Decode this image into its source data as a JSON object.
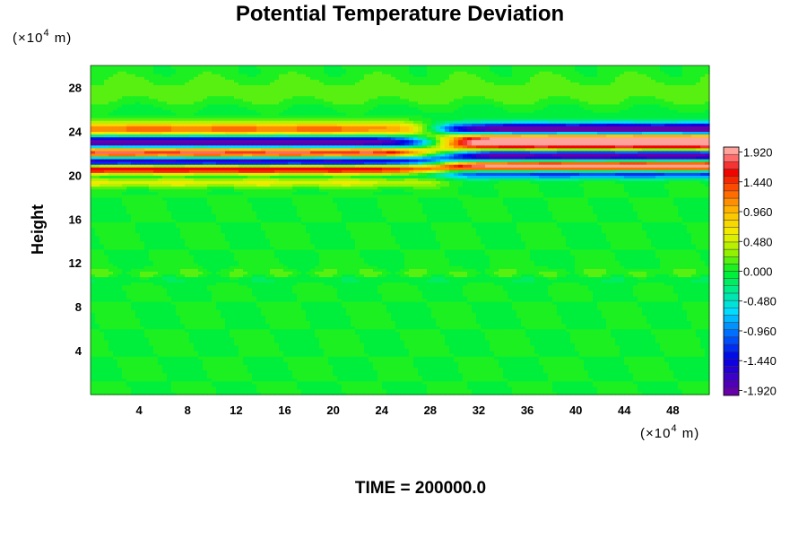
{
  "chart_data": {
    "type": "heatmap",
    "title": "Potential Temperature Deviation",
    "ylabel": "Height",
    "x_unit": {
      "prefix": "(×10",
      "exp": "4",
      "suffix": " m)"
    },
    "y_unit": {
      "prefix": "(×10",
      "exp": "4",
      "suffix": " m)"
    },
    "xlim": [
      0,
      51
    ],
    "ylim": [
      0,
      30
    ],
    "xticks": [
      4,
      8,
      12,
      16,
      20,
      24,
      28,
      32,
      36,
      40,
      44,
      48
    ],
    "xtick_labels": [
      "4",
      "8",
      "12",
      "16",
      "20",
      "24",
      "28",
      "32",
      "36",
      "40",
      "44",
      "48"
    ],
    "yticks": [
      4,
      8,
      12,
      16,
      20,
      24,
      28
    ],
    "ytick_labels": [
      "4",
      "8",
      "12",
      "16",
      "20",
      "24",
      "28"
    ],
    "colorbar": {
      "range": [
        -2.0,
        2.0
      ],
      "ticks": [
        1.92,
        1.44,
        0.96,
        0.48,
        0.0,
        -0.48,
        -0.96,
        -1.44,
        -1.92
      ],
      "tick_labels": [
        "1.920",
        "1.440",
        "0.960",
        "0.480",
        "0.000",
        "-0.480",
        "-0.960",
        "-1.440",
        "-1.920"
      ],
      "levels": 34
    },
    "features": [
      {
        "desc": "lower wave band",
        "x_range": [
          0,
          51
        ],
        "z_range": [
          19.6,
          23.5
        ],
        "max": 2.0,
        "min": -2.0
      },
      {
        "desc": "upper right band",
        "x_range": [
          30,
          51
        ],
        "z_range": [
          20.4,
          24.6
        ],
        "max": 2.0,
        "min": -2.0
      },
      {
        "desc": "turbulent layer",
        "x_range": [
          0,
          51
        ],
        "z_range": [
          10.5,
          11.5
        ],
        "max": 0.3,
        "min": -0.2
      }
    ]
  },
  "footer": {
    "time_label": "TIME = 200000.0"
  }
}
